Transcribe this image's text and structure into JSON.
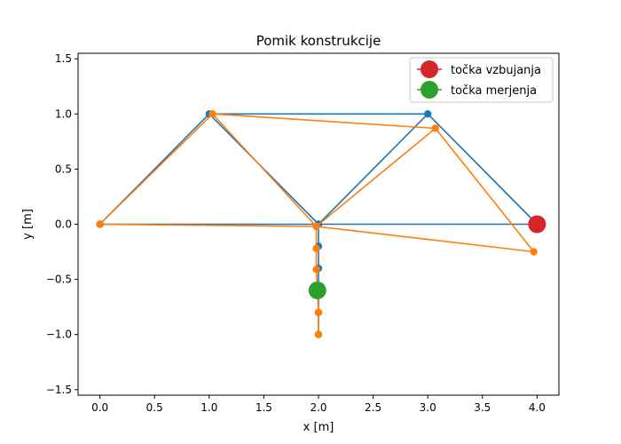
{
  "chart_data": {
    "type": "line",
    "title": "Pomik konstrukcije",
    "xlabel": "x [m]",
    "ylabel": "y [m]",
    "xlim": [
      -0.2,
      4.2
    ],
    "ylim": [
      -1.55,
      1.55
    ],
    "xticks": [
      "0.0",
      "0.5",
      "1.0",
      "1.5",
      "2.0",
      "2.5",
      "3.0",
      "3.5",
      "4.0"
    ],
    "yticks": [
      "−1.5",
      "−1.0",
      "−0.5",
      "0.0",
      "0.5",
      "1.0",
      "1.5"
    ],
    "grid": false,
    "legend_position": "top-right",
    "colors": {
      "original": "#1f77b4",
      "displaced": "#ff7f0e",
      "excitation": "#d62728",
      "measurement": "#2ca02c"
    },
    "series": [
      {
        "segments": [
          [
            [
              0,
              0
            ],
            [
              1,
              1
            ],
            [
              2,
              0
            ],
            [
              0,
              0
            ]
          ],
          [
            [
              1,
              1
            ],
            [
              3,
              1
            ],
            [
              2,
              0
            ]
          ],
          [
            [
              3,
              1
            ],
            [
              4,
              0
            ],
            [
              2,
              0
            ]
          ],
          [
            [
              2,
              0
            ],
            [
              2,
              -0.2
            ],
            [
              2,
              -0.4
            ],
            [
              2,
              -0.6
            ],
            [
              2,
              -0.8
            ],
            [
              2,
              -1.0
            ]
          ]
        ],
        "nodes": [
          [
            0,
            0
          ],
          [
            1,
            1
          ],
          [
            2,
            0
          ],
          [
            3,
            1
          ],
          [
            4,
            0
          ],
          [
            2,
            -0.2
          ],
          [
            2,
            -0.4
          ],
          [
            2,
            -0.6
          ],
          [
            2,
            -0.8
          ],
          [
            2,
            -1.0
          ]
        ]
      },
      {
        "segments": [
          [
            [
              0,
              0
            ],
            [
              1.03,
              1.0
            ],
            [
              1.98,
              -0.02
            ],
            [
              0,
              0
            ]
          ],
          [
            [
              1.03,
              1.0
            ],
            [
              3.07,
              0.87
            ],
            [
              1.98,
              -0.02
            ]
          ],
          [
            [
              3.07,
              0.87
            ],
            [
              3.97,
              -0.25
            ],
            [
              1.98,
              -0.02
            ]
          ],
          [
            [
              1.98,
              -0.02
            ],
            [
              1.98,
              -0.22
            ],
            [
              1.98,
              -0.41
            ],
            [
              1.99,
              -0.6
            ],
            [
              2.0,
              -0.8
            ],
            [
              2.0,
              -1.0
            ]
          ]
        ],
        "nodes": [
          [
            0,
            0
          ],
          [
            1.03,
            1.0
          ],
          [
            1.98,
            -0.02
          ],
          [
            3.07,
            0.87
          ],
          [
            3.97,
            -0.25
          ],
          [
            1.98,
            -0.22
          ],
          [
            1.98,
            -0.41
          ],
          [
            1.99,
            -0.6
          ],
          [
            2.0,
            -0.8
          ],
          [
            2.0,
            -1.0
          ]
        ]
      }
    ],
    "markers": [
      {
        "name": "točka vzbujanja",
        "point": [
          4.0,
          0.0
        ]
      },
      {
        "name": "točka merjenja",
        "point": [
          1.99,
          -0.6
        ]
      }
    ]
  }
}
